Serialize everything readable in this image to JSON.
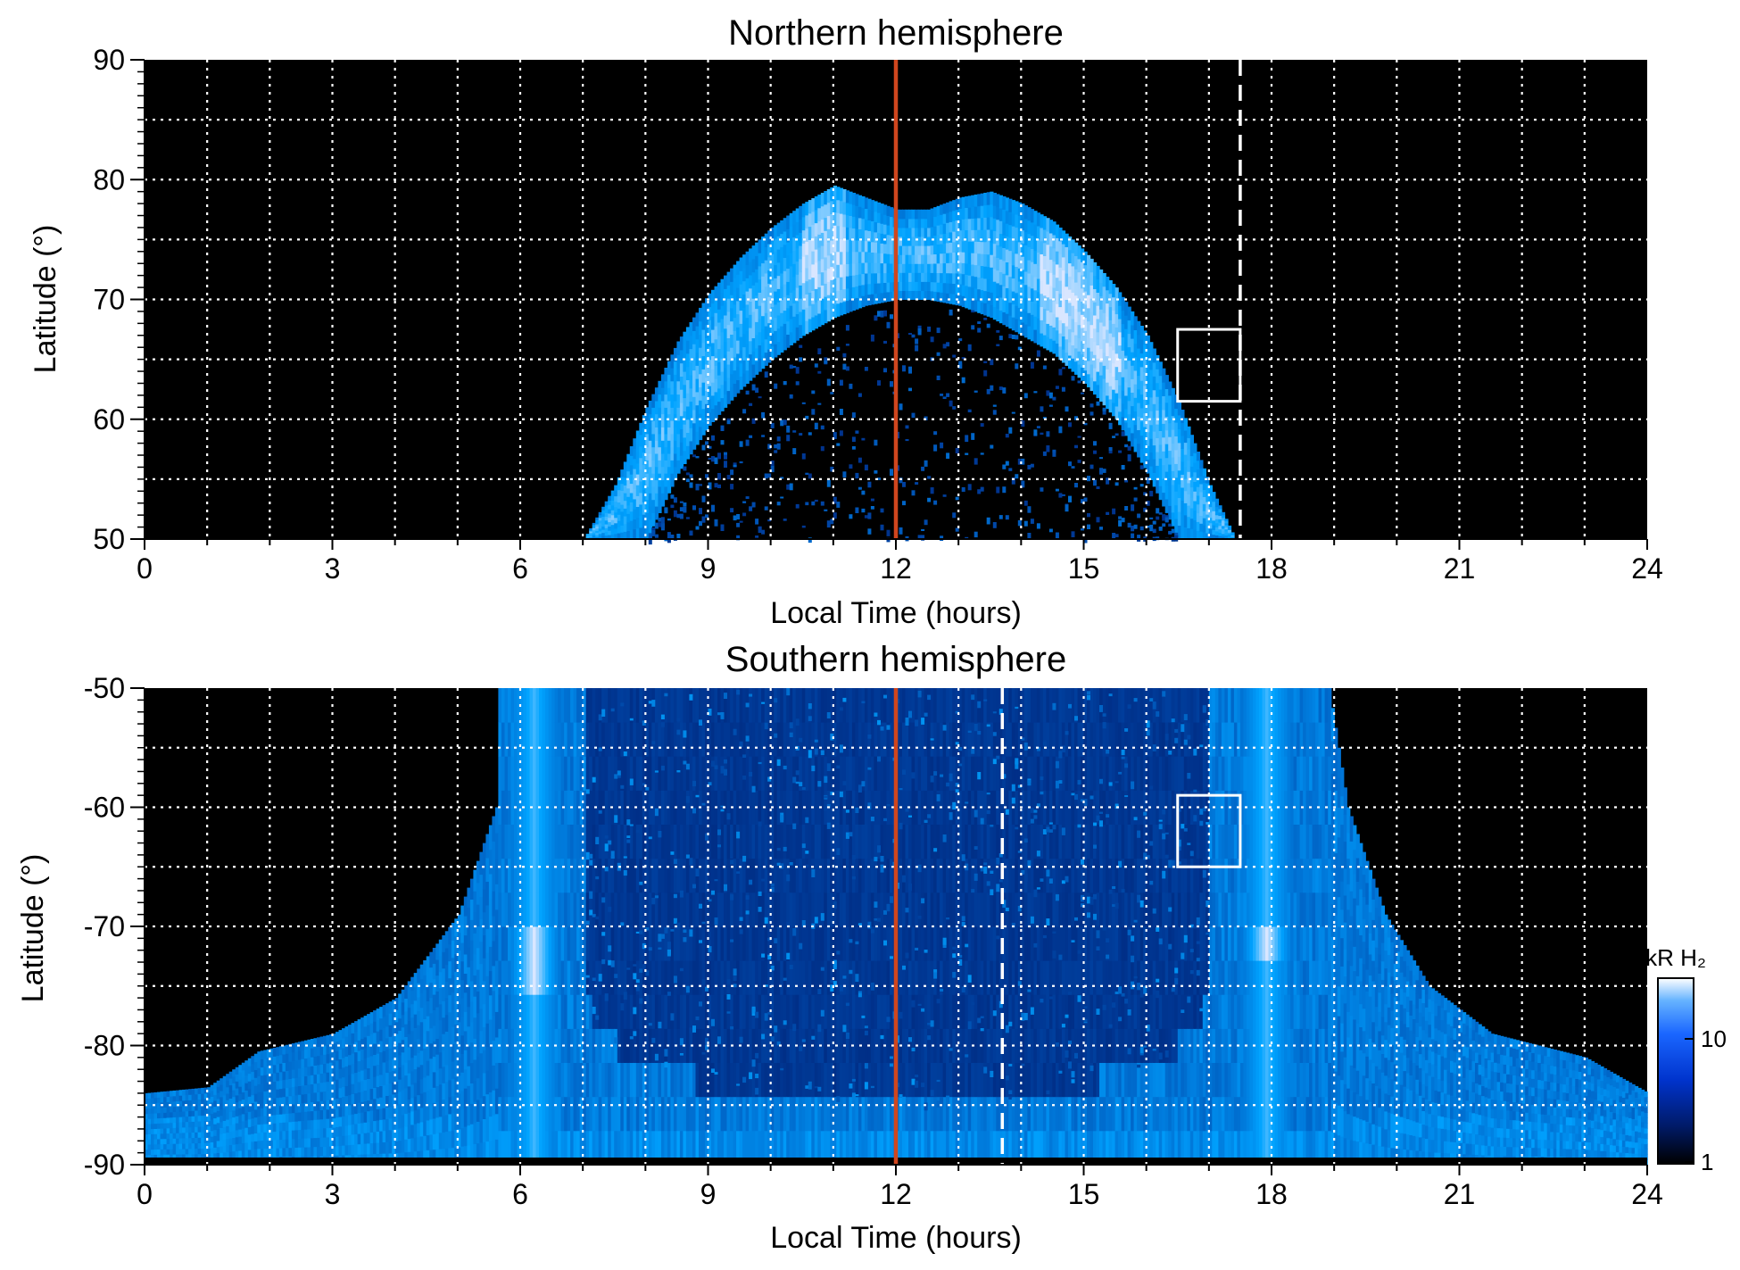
{
  "chart_data": [
    {
      "type": "heatmap",
      "title": "Northern hemisphere",
      "xlabel": "Local Time (hours)",
      "ylabel": "Latitude (°)",
      "xlim": [
        0,
        24
      ],
      "ylim": [
        50,
        90
      ],
      "x_ticks": [
        "0",
        "3",
        "6",
        "9",
        "12",
        "15",
        "18",
        "21",
        "24"
      ],
      "y_ticks": [
        "50",
        "60",
        "70",
        "80",
        "90"
      ],
      "grid": true,
      "background": "#000000",
      "noon_line": {
        "x": 12,
        "color": "#d0461e"
      },
      "dashed_line": {
        "x": 17.5,
        "color": "#ffffff"
      },
      "box": {
        "x0": 16.5,
        "x1": 17.5,
        "y0": 61.5,
        "y1": 67.5
      },
      "oval": [
        {
          "lt": 7.0,
          "inner": null,
          "outer": 50.0
        },
        {
          "lt": 7.5,
          "inner": null,
          "outer": 54.5
        },
        {
          "lt": 8.0,
          "inner": 50.0,
          "outer": 61.0
        },
        {
          "lt": 8.5,
          "inner": 55.5,
          "outer": 66.5
        },
        {
          "lt": 9.0,
          "inner": 59.5,
          "outer": 70.5
        },
        {
          "lt": 9.5,
          "inner": 62.5,
          "outer": 73.5
        },
        {
          "lt": 10.0,
          "inner": 65.0,
          "outer": 76.0
        },
        {
          "lt": 10.5,
          "inner": 67.0,
          "outer": 78.0
        },
        {
          "lt": 11.0,
          "inner": 68.5,
          "outer": 79.5
        },
        {
          "lt": 11.5,
          "inner": 69.5,
          "outer": 78.5
        },
        {
          "lt": 12.0,
          "inner": 70.0,
          "outer": 77.5
        },
        {
          "lt": 12.5,
          "inner": 70.0,
          "outer": 77.5
        },
        {
          "lt": 13.0,
          "inner": 69.5,
          "outer": 78.5
        },
        {
          "lt": 13.5,
          "inner": 68.5,
          "outer": 79.0
        },
        {
          "lt": 14.0,
          "inner": 67.0,
          "outer": 78.0
        },
        {
          "lt": 14.5,
          "inner": 65.5,
          "outer": 76.5
        },
        {
          "lt": 15.0,
          "inner": 63.0,
          "outer": 74.0
        },
        {
          "lt": 15.5,
          "inner": 60.0,
          "outer": 71.0
        },
        {
          "lt": 16.0,
          "inner": 55.5,
          "outer": 67.0
        },
        {
          "lt": 16.5,
          "inner": 50.0,
          "outer": 61.5
        },
        {
          "lt": 17.0,
          "inner": null,
          "outer": 54.5
        },
        {
          "lt": 17.4,
          "inner": null,
          "outer": 50.0
        }
      ]
    },
    {
      "type": "heatmap",
      "title": "Southern hemisphere",
      "xlabel": "Local Time (hours)",
      "ylabel": "Latitude (°)",
      "xlim": [
        0,
        24
      ],
      "ylim": [
        -90,
        -50
      ],
      "x_ticks": [
        "0",
        "3",
        "6",
        "9",
        "12",
        "15",
        "18",
        "21",
        "24"
      ],
      "y_ticks": [
        "-90",
        "-80",
        "-70",
        "-60",
        "-50"
      ],
      "grid": true,
      "background": "#000000",
      "noon_line": {
        "x": 12,
        "color": "#d0461e"
      },
      "dashed_line": {
        "x": 13.7,
        "color": "#ffffff"
      },
      "box": {
        "x0": 16.5,
        "x1": 17.5,
        "y0": -65,
        "y1": -59
      },
      "dark_region": [
        {
          "lt": 7.0,
          "lat": -50
        },
        {
          "lt": 7.0,
          "lat": -76
        },
        {
          "lt": 7.5,
          "lat": -80
        },
        {
          "lt": 8.5,
          "lat": -82.5
        },
        {
          "lt": 10.0,
          "lat": -84.5
        },
        {
          "lt": 12.0,
          "lat": -85.5
        },
        {
          "lt": 14.0,
          "lat": -84.5
        },
        {
          "lt": 15.5,
          "lat": -82.5
        },
        {
          "lt": 16.5,
          "lat": -80
        },
        {
          "lt": 17.0,
          "lat": -76
        },
        {
          "lt": 17.0,
          "lat": -50
        }
      ],
      "outer_boundary": [
        {
          "lt": 0.0,
          "lat": -84
        },
        {
          "lt": 1.0,
          "lat": -83.5
        },
        {
          "lt": 1.8,
          "lat": -80.5
        },
        {
          "lt": 3.0,
          "lat": -79
        },
        {
          "lt": 4.0,
          "lat": -76
        },
        {
          "lt": 5.0,
          "lat": -69
        },
        {
          "lt": 5.6,
          "lat": -60
        },
        {
          "lt": 5.8,
          "lat": -50
        },
        {
          "lt": 18.9,
          "lat": -50
        },
        {
          "lt": 19.2,
          "lat": -60
        },
        {
          "lt": 19.8,
          "lat": -69
        },
        {
          "lt": 20.5,
          "lat": -75
        },
        {
          "lt": 21.5,
          "lat": -79
        },
        {
          "lt": 23.0,
          "lat": -81
        },
        {
          "lt": 24.0,
          "lat": -84
        }
      ],
      "bright_bands": [
        {
          "lt": 6.2,
          "halfwidth": 0.45,
          "lat_top": -50,
          "peak_lat": -72.5
        },
        {
          "lt": 17.9,
          "halfwidth": 0.45,
          "lat_top": -50,
          "peak_lat": -72.0
        }
      ]
    }
  ],
  "colorbar": {
    "title": "kR H₂",
    "ticks": [
      "1",
      "10"
    ],
    "colors": [
      "#000000",
      "#001a66",
      "#0033cc",
      "#1a66ff",
      "#66b3ff",
      "#ffffff"
    ]
  }
}
